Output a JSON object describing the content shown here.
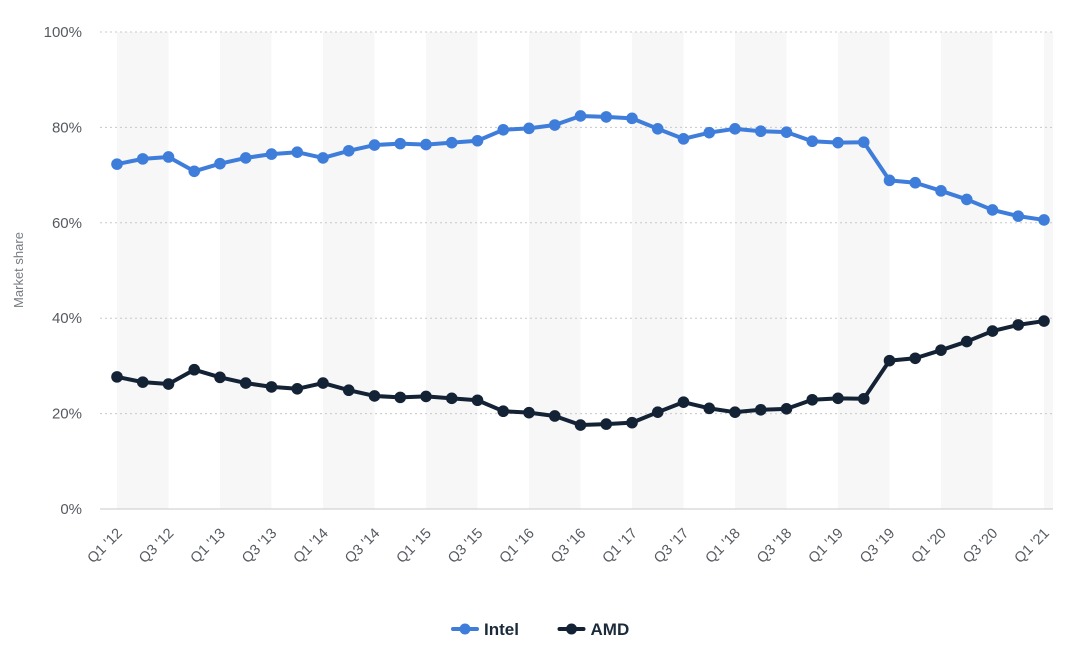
{
  "chart_data": {
    "type": "line",
    "ylabel": "Market share",
    "ylim": [
      0,
      100
    ],
    "yticks": [
      "0%",
      "20%",
      "40%",
      "60%",
      "80%",
      "100%"
    ],
    "grid": true,
    "legend_position": "bottom-center",
    "x": [
      "Q1 '12",
      "Q2 '12",
      "Q3 '12",
      "Q4 '12",
      "Q1 '13",
      "Q2 '13",
      "Q3 '13",
      "Q4 '13",
      "Q1 '14",
      "Q2 '14",
      "Q3 '14",
      "Q4 '14",
      "Q1 '15",
      "Q2 '15",
      "Q3 '15",
      "Q4 '15",
      "Q1 '16",
      "Q2 '16",
      "Q3 '16",
      "Q4 '16",
      "Q1 '17",
      "Q2 '17",
      "Q3 '17",
      "Q4 '17",
      "Q1 '18",
      "Q2 '18",
      "Q3 '18",
      "Q4 '18",
      "Q1 '19",
      "Q2 '19",
      "Q3 '19",
      "Q4 '19",
      "Q1 '20",
      "Q2 '20",
      "Q3 '20",
      "Q4 '20",
      "Q1 '21"
    ],
    "xtick_labels": [
      "Q1 '12",
      "Q3 '12",
      "Q1 '13",
      "Q3 '13",
      "Q1 '14",
      "Q3 '14",
      "Q1 '15",
      "Q3 '15",
      "Q1 '16",
      "Q3 '16",
      "Q1 '17",
      "Q3 '17",
      "Q1 '18",
      "Q3 '18",
      "Q1 '19",
      "Q3 '19",
      "Q1 '20",
      "Q3 '20",
      "Q1 '21"
    ],
    "series": [
      {
        "name": "Intel",
        "color": "#3f7ddb",
        "values": [
          72.3,
          73.4,
          73.8,
          70.8,
          72.4,
          73.6,
          74.4,
          74.8,
          73.6,
          75.1,
          76.3,
          76.6,
          76.4,
          76.8,
          77.2,
          79.5,
          79.8,
          80.5,
          82.4,
          82.2,
          81.9,
          79.7,
          77.6,
          78.9,
          79.7,
          79.2,
          79.0,
          77.1,
          76.8,
          76.9,
          68.9,
          68.4,
          66.7,
          64.9,
          62.7,
          61.4,
          60.6
        ]
      },
      {
        "name": "AMD",
        "color": "#142235",
        "values": [
          27.7,
          26.6,
          26.2,
          29.2,
          27.6,
          26.4,
          25.6,
          25.2,
          26.4,
          24.9,
          23.7,
          23.4,
          23.6,
          23.2,
          22.8,
          20.5,
          20.2,
          19.5,
          17.6,
          17.8,
          18.1,
          20.3,
          22.4,
          21.1,
          20.3,
          20.8,
          21.0,
          22.9,
          23.2,
          23.1,
          31.1,
          31.6,
          33.3,
          35.1,
          37.3,
          38.6,
          39.4
        ]
      }
    ]
  }
}
